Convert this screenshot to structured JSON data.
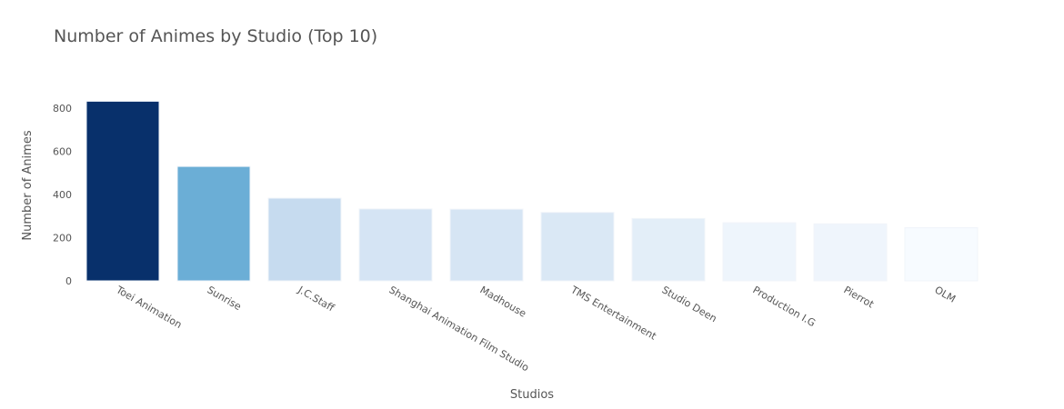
{
  "chart_data": {
    "type": "bar",
    "title": "Number of Animes by Studio (Top 10)",
    "xlabel": "Studios",
    "ylabel": "Number of Animes",
    "categories": [
      "Toei Animation",
      "Sunrise",
      "J.C.Staff",
      "Shanghai Animation Film Studio",
      "Madhouse",
      "TMS Entertainment",
      "Studio Deen",
      "Production I.G",
      "Pierrot",
      "OLM"
    ],
    "values": [
      832,
      530,
      383,
      333,
      332,
      317,
      289,
      269,
      264,
      246
    ],
    "ylim": [
      0,
      880
    ],
    "yticks": [
      "0",
      "200",
      "400",
      "600",
      "800"
    ],
    "grid": false,
    "colorscale": "Blues",
    "bar_colors": [
      "#08306b",
      "#6baed6",
      "#c6dbef",
      "#d5e4f4",
      "#d6e5f4",
      "#dae8f5",
      "#e3eef8",
      "#eef5fc",
      "#eff5fc",
      "#f7fbff"
    ]
  }
}
